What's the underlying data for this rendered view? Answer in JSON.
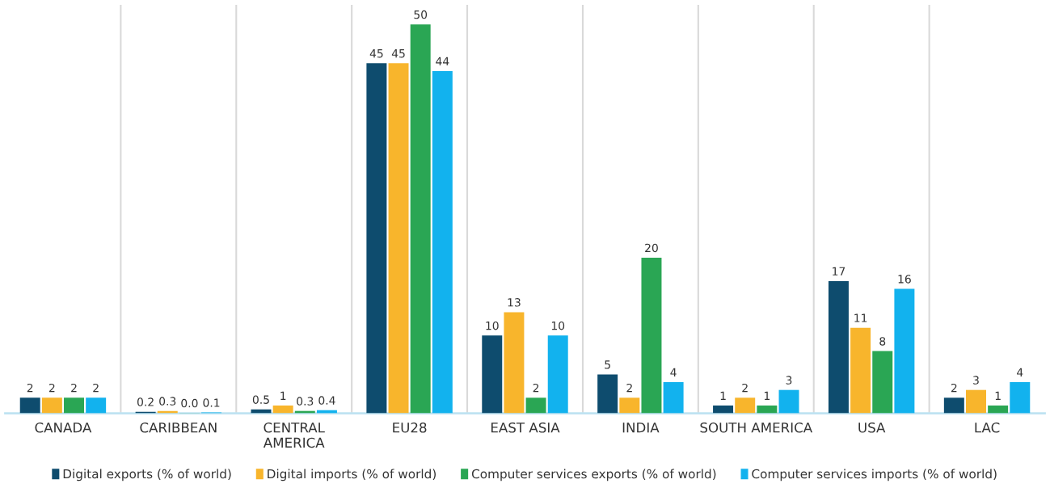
{
  "chart_data": {
    "type": "bar",
    "categories": [
      "CANADA",
      "CARIBBEAN",
      "CENTRAL\nAMERICA",
      "EU28",
      "EAST ASIA",
      "INDIA",
      "SOUTH AMERICA",
      "USA",
      "LAC"
    ],
    "series": [
      {
        "name": "Digital exports (% of world)",
        "color": "#0e4c6e",
        "values": [
          2,
          0.2,
          0.5,
          45,
          10,
          5,
          1,
          17,
          2
        ],
        "value_labels": [
          "2",
          "0.2",
          "0.5",
          "45",
          "10",
          "5",
          "1",
          "17",
          "2"
        ]
      },
      {
        "name": "Digital imports (% of world)",
        "color": "#f8b52c",
        "values": [
          2,
          0.3,
          1,
          45,
          13,
          2,
          2,
          11,
          3
        ],
        "value_labels": [
          "2",
          "0.3",
          "1",
          "45",
          "13",
          "2",
          "2",
          "11",
          "3"
        ]
      },
      {
        "name": "Computer services exports (% of world)",
        "color": "#2aa654",
        "values": [
          2,
          0.04,
          0.3,
          50,
          2,
          20,
          1,
          8,
          1
        ],
        "value_labels": [
          "2",
          "0.0",
          "0.3",
          "50",
          "2",
          "20",
          "1",
          "8",
          "1"
        ]
      },
      {
        "name": "Computer services imports (% of world)",
        "color": "#12b2ee",
        "values": [
          2,
          0.1,
          0.4,
          44,
          10,
          4,
          3,
          16,
          4
        ],
        "value_labels": [
          "2",
          "0.1",
          "0.4",
          "44",
          "10",
          "4",
          "3",
          "16",
          "4"
        ]
      }
    ],
    "grid": "x",
    "legend": "bottom",
    "tick_labels": "x"
  }
}
